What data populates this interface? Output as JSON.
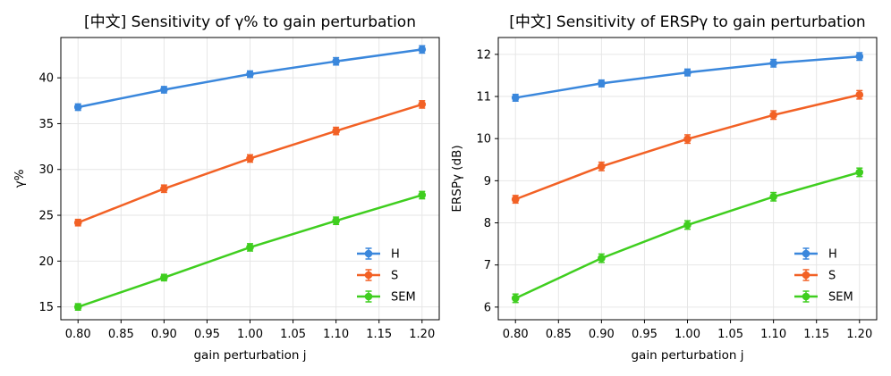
{
  "chart_data": [
    {
      "type": "line",
      "title": "[中文] Sensitivity of γ% to gain perturbation",
      "xlabel": "gain perturbation j",
      "ylabel": "γ%",
      "xlim": [
        0.78,
        1.22
      ],
      "ylim": [
        13.6,
        44.4
      ],
      "xticks": [
        "0.80",
        "0.85",
        "0.90",
        "0.95",
        "1.00",
        "1.05",
        "1.10",
        "1.15",
        "1.20"
      ],
      "yticks": [
        "15",
        "20",
        "25",
        "30",
        "35",
        "40"
      ],
      "grid": true,
      "legend": "lower-right",
      "x": [
        0.8,
        0.9,
        1.0,
        1.1,
        1.2
      ],
      "series": [
        {
          "name": "H",
          "color": "#3a87dc",
          "values": [
            36.8,
            38.7,
            40.4,
            41.8,
            43.1
          ],
          "err": [
            0.35,
            0.35,
            0.35,
            0.4,
            0.4
          ]
        },
        {
          "name": "S",
          "color": "#f26125",
          "values": [
            24.2,
            27.9,
            31.2,
            34.2,
            37.1
          ],
          "err": [
            0.35,
            0.4,
            0.4,
            0.4,
            0.4
          ]
        },
        {
          "name": "SEM",
          "color": "#3fce1f",
          "values": [
            15.0,
            18.2,
            21.5,
            24.4,
            27.2
          ],
          "err": [
            0.35,
            0.35,
            0.4,
            0.4,
            0.4
          ]
        }
      ]
    },
    {
      "type": "line",
      "title": "[中文] Sensitivity of ERSPγ to gain perturbation",
      "xlabel": "gain perturbation j",
      "ylabel": "ERSPγ (dB)",
      "xlim": [
        0.78,
        1.22
      ],
      "ylim": [
        5.7,
        12.4
      ],
      "xticks": [
        "0.80",
        "0.85",
        "0.90",
        "0.95",
        "1.00",
        "1.05",
        "1.10",
        "1.15",
        "1.20"
      ],
      "yticks": [
        "6",
        "7",
        "8",
        "9",
        "10",
        "11",
        "12"
      ],
      "grid": true,
      "legend": "lower-right",
      "x": [
        0.8,
        0.9,
        1.0,
        1.1,
        1.2
      ],
      "series": [
        {
          "name": "H",
          "color": "#3a87dc",
          "values": [
            10.97,
            11.31,
            11.57,
            11.79,
            11.95
          ],
          "err": [
            0.08,
            0.08,
            0.08,
            0.09,
            0.09
          ]
        },
        {
          "name": "S",
          "color": "#f26125",
          "values": [
            8.56,
            9.34,
            9.99,
            10.56,
            11.04
          ],
          "err": [
            0.09,
            0.1,
            0.1,
            0.1,
            0.1
          ]
        },
        {
          "name": "SEM",
          "color": "#3fce1f",
          "values": [
            6.21,
            7.16,
            7.95,
            8.62,
            9.2
          ],
          "err": [
            0.1,
            0.1,
            0.1,
            0.1,
            0.1
          ]
        }
      ]
    }
  ]
}
